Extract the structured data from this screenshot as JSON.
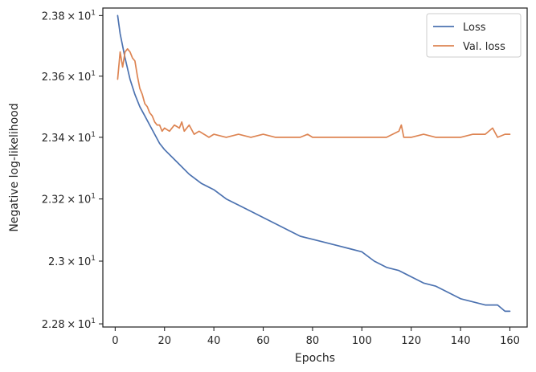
{
  "chart_data": {
    "type": "line",
    "xlabel": "Epochs",
    "ylabel": "Negative log-likelihood",
    "yscale": "log",
    "xlim": [
      -5,
      167
    ],
    "ylim": [
      22.79,
      23.825
    ],
    "x_ticks": [
      0,
      20,
      40,
      60,
      80,
      100,
      120,
      140,
      160
    ],
    "x_tick_labels": [
      "0",
      "20",
      "40",
      "60",
      "80",
      "100",
      "120",
      "140",
      "160"
    ],
    "y_ticks": [
      22.8,
      23.0,
      23.2,
      23.4,
      23.6,
      23.8
    ],
    "y_tick_labels": [
      {
        "mant": "2.28",
        "exp": "1"
      },
      {
        "mant": "2.3",
        "exp": "1"
      },
      {
        "mant": "2.32",
        "exp": "1"
      },
      {
        "mant": "2.34",
        "exp": "1"
      },
      {
        "mant": "2.36",
        "exp": "1"
      },
      {
        "mant": "2.38",
        "exp": "1"
      }
    ],
    "times_symbol": "×",
    "tick_base": "10",
    "grid": false,
    "legend": "top-right",
    "series": [
      {
        "name": "Loss",
        "color": "#4c72b0",
        "x": [
          1,
          2,
          4,
          6,
          8,
          10,
          12,
          14,
          16,
          18,
          20,
          25,
          30,
          35,
          40,
          45,
          50,
          55,
          60,
          65,
          70,
          75,
          80,
          85,
          90,
          95,
          100,
          105,
          110,
          115,
          120,
          125,
          130,
          135,
          140,
          145,
          150,
          155,
          158,
          160
        ],
        "values": [
          23.8,
          23.74,
          23.66,
          23.59,
          23.54,
          23.5,
          23.47,
          23.44,
          23.41,
          23.38,
          23.36,
          23.32,
          23.28,
          23.25,
          23.23,
          23.2,
          23.18,
          23.16,
          23.14,
          23.12,
          23.1,
          23.08,
          23.07,
          23.06,
          23.05,
          23.04,
          23.03,
          23.0,
          22.98,
          22.97,
          22.95,
          22.93,
          22.92,
          22.9,
          22.88,
          22.87,
          22.86,
          22.86,
          22.84,
          22.84
        ]
      },
      {
        "name": "Val. loss",
        "color": "#dd8452",
        "x": [
          1,
          2,
          3,
          4,
          5,
          6,
          7,
          8,
          9,
          10,
          11,
          12,
          13,
          14,
          15,
          16,
          17,
          18,
          19,
          20,
          22,
          24,
          26,
          27,
          28,
          30,
          32,
          34,
          36,
          38,
          40,
          45,
          50,
          55,
          60,
          65,
          70,
          75,
          78,
          80,
          85,
          90,
          95,
          100,
          105,
          110,
          115,
          116,
          117,
          120,
          125,
          130,
          135,
          140,
          145,
          150,
          153,
          155,
          158,
          160
        ],
        "values": [
          23.59,
          23.68,
          23.63,
          23.68,
          23.69,
          23.68,
          23.66,
          23.65,
          23.6,
          23.56,
          23.54,
          23.51,
          23.5,
          23.48,
          23.47,
          23.45,
          23.44,
          23.44,
          23.42,
          23.43,
          23.42,
          23.44,
          23.43,
          23.45,
          23.42,
          23.44,
          23.41,
          23.42,
          23.41,
          23.4,
          23.41,
          23.4,
          23.41,
          23.4,
          23.41,
          23.4,
          23.4,
          23.4,
          23.41,
          23.4,
          23.4,
          23.4,
          23.4,
          23.4,
          23.4,
          23.4,
          23.42,
          23.44,
          23.4,
          23.4,
          23.41,
          23.4,
          23.4,
          23.4,
          23.41,
          23.41,
          23.43,
          23.4,
          23.41,
          23.41
        ]
      }
    ]
  }
}
